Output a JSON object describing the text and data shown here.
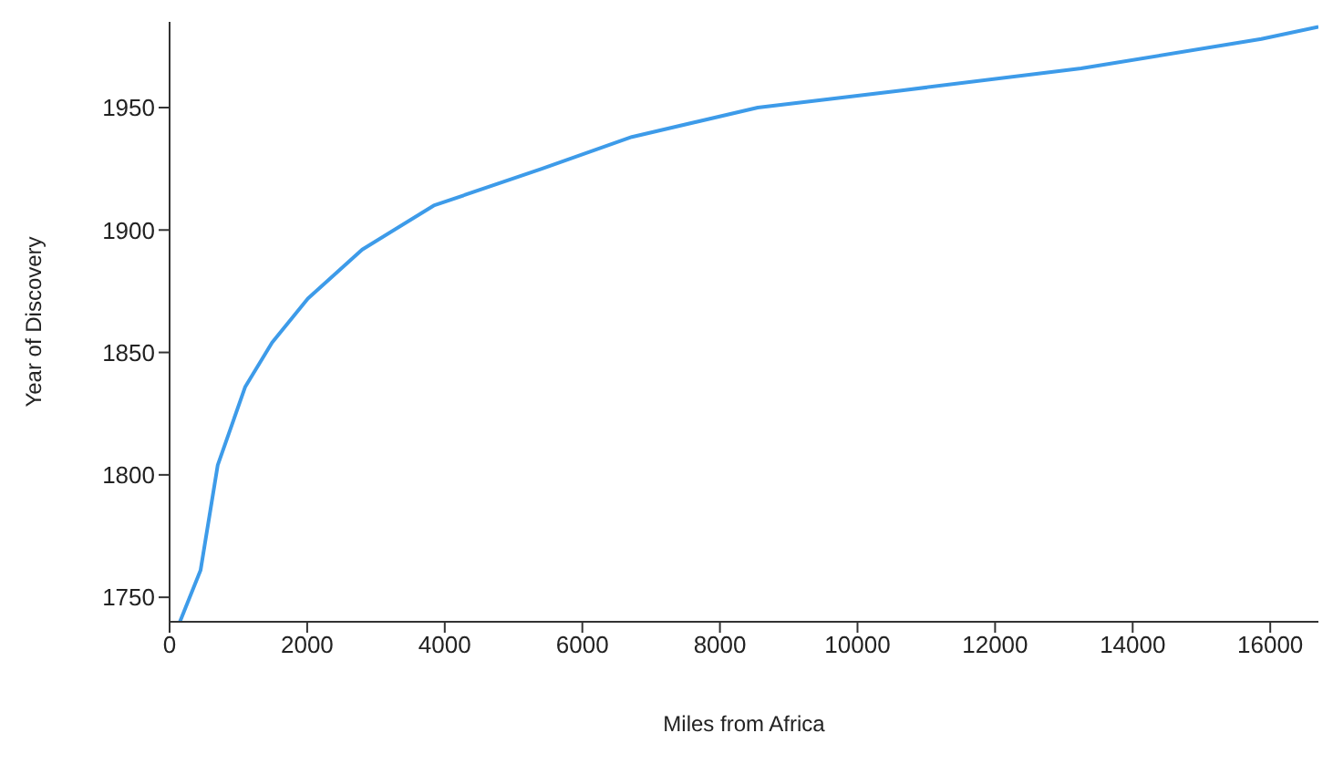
{
  "chart_data": {
    "type": "line",
    "xlabel": "Miles from Africa",
    "ylabel": "Year of Discovery",
    "x": [
      150,
      450,
      700,
      1100,
      1490,
      2010,
      2800,
      3840,
      5410,
      6720,
      8550,
      10640,
      13250,
      15870,
      16700
    ],
    "series": [
      {
        "color": "#3d9be9",
        "values": [
          1740,
          1761,
          1804,
          1836,
          1854,
          1872,
          1892,
          1910,
          1925,
          1938,
          1950,
          1957,
          1966,
          1978,
          1983
        ]
      }
    ],
    "xlim": [
      0,
      16700
    ],
    "xticks": [
      0,
      2000,
      4000,
      6000,
      8000,
      10000,
      12000,
      14000,
      16000
    ],
    "ylim": [
      1740,
      1985
    ],
    "yticks": [
      1750,
      1800,
      1850,
      1900,
      1950
    ],
    "grid": false,
    "legend": false,
    "marker": "none",
    "line_style": "solid"
  }
}
